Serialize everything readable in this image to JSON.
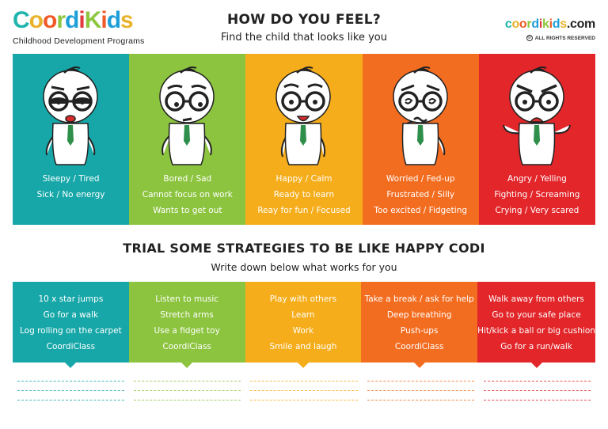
{
  "logo": {
    "letters": [
      {
        "ch": "C",
        "color": "#1fb5ad"
      },
      {
        "ch": "o",
        "color": "#e8b32a"
      },
      {
        "ch": "o",
        "color": "#f05a28"
      },
      {
        "ch": "r",
        "color": "#8dc63f"
      },
      {
        "ch": "d",
        "color": "#1e9fd8"
      },
      {
        "ch": "i",
        "color": "#e03a3e"
      },
      {
        "ch": "K",
        "color": "#8dc63f"
      },
      {
        "ch": "i",
        "color": "#f05a28"
      },
      {
        "ch": "d",
        "color": "#1e9fd8"
      },
      {
        "ch": "s",
        "color": "#e8b32a"
      }
    ],
    "subtitle": "Childhood Development Programs"
  },
  "header": {
    "title": "HOW DO YOU FEEL?",
    "subtitle": "Find the child that looks like you"
  },
  "site": {
    "letters": [
      {
        "ch": "c",
        "color": "#1fb5ad"
      },
      {
        "ch": "o",
        "color": "#e8b32a"
      },
      {
        "ch": "o",
        "color": "#f05a28"
      },
      {
        "ch": "r",
        "color": "#8dc63f"
      },
      {
        "ch": "d",
        "color": "#1e9fd8"
      },
      {
        "ch": "i",
        "color": "#e03a3e"
      },
      {
        "ch": "k",
        "color": "#8dc63f"
      },
      {
        "ch": "i",
        "color": "#f05a28"
      },
      {
        "ch": "d",
        "color": "#1e9fd8"
      },
      {
        "ch": "s",
        "color": "#e8b32a"
      },
      {
        "ch": ".com",
        "color": "#222222"
      }
    ],
    "rights": "ALL RIGHTS RESERVED"
  },
  "feelings": [
    {
      "color": "#17a7a8",
      "mood": "tired",
      "lines": [
        "Sleepy / Tired",
        "Sick / No energy"
      ]
    },
    {
      "color": "#8cc43f",
      "mood": "bored",
      "lines": [
        "Bored / Sad",
        "Cannot focus on work",
        "Wants to get out"
      ]
    },
    {
      "color": "#f5ad1b",
      "mood": "happy",
      "lines": [
        "Happy / Calm",
        "Ready to learn",
        "Reay for fun / Focused"
      ]
    },
    {
      "color": "#f36d21",
      "mood": "worried",
      "lines": [
        "Worried / Fed-up",
        "Frustrated / Silly",
        "Too excited / Fidgeting"
      ]
    },
    {
      "color": "#e2262a",
      "mood": "angry",
      "lines": [
        "Angry / Yelling",
        "Fighting / Screaming",
        "Crying / Very scared"
      ]
    }
  ],
  "strategies_header": {
    "title": "TRIAL SOME STRATEGIES TO BE LIKE HAPPY CODI",
    "subtitle": "Write down below what works for you"
  },
  "strategies": [
    {
      "color": "#17a7a8",
      "items": [
        "10 x star jumps",
        "Go for a walk",
        "Log rolling on the carpet",
        "CoordiClass"
      ]
    },
    {
      "color": "#8cc43f",
      "items": [
        "Listen to music",
        "Stretch arms",
        "Use a fidget toy",
        "CoordiClass"
      ]
    },
    {
      "color": "#f5ad1b",
      "items": [
        "Play with others",
        "Learn",
        "Work",
        "Smile and laugh"
      ]
    },
    {
      "color": "#f36d21",
      "items": [
        "Take a break / ask for help",
        "Deep breathing",
        "Push-ups",
        "CoordiClass"
      ]
    },
    {
      "color": "#e2262a",
      "items": [
        "Walk away from others",
        "Go to your safe place",
        "Hit/kick a ball or big cushion",
        "Go for a run/walk"
      ]
    }
  ]
}
